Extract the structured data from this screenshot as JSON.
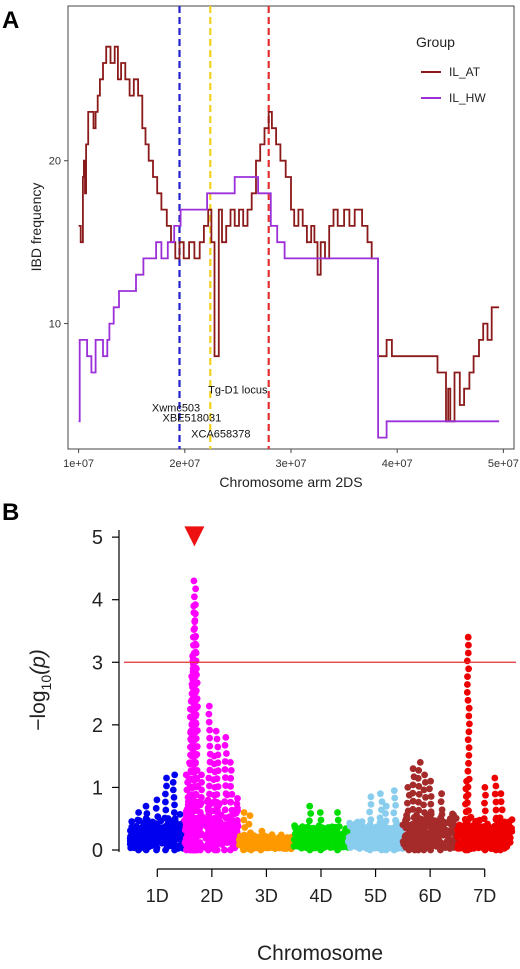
{
  "panel_a": {
    "letter": "A",
    "chart_data": {
      "type": "line",
      "xlabel": "Chromosome arm 2DS",
      "ylabel": "IBD frequency",
      "xlim": [
        9000000,
        51000000
      ],
      "ylim": [
        2.3,
        29.5
      ],
      "x_ticks": [
        10000000,
        20000000,
        30000000,
        40000000,
        50000000
      ],
      "x_tick_labels": [
        "1e+07",
        "2e+07",
        "3e+07",
        "4e+07",
        "5e+07"
      ],
      "y_ticks": [
        10,
        20
      ],
      "y_tick_labels": [
        "10",
        "20"
      ],
      "legend": {
        "title": "Group",
        "position": "top-right"
      },
      "series": [
        {
          "name": "IL_AT",
          "color": "#8B1A1A",
          "points": [
            [
              10000000,
              16
            ],
            [
              10200000,
              15
            ],
            [
              10400000,
              19
            ],
            [
              10500000,
              20
            ],
            [
              10600000,
              18
            ],
            [
              10700000,
              21
            ],
            [
              10900000,
              23
            ],
            [
              11200000,
              23
            ],
            [
              11400000,
              22
            ],
            [
              11600000,
              23
            ],
            [
              11800000,
              24
            ],
            [
              12000000,
              25
            ],
            [
              12300000,
              26
            ],
            [
              12600000,
              27
            ],
            [
              13000000,
              26
            ],
            [
              13400000,
              27
            ],
            [
              13700000,
              25
            ],
            [
              14000000,
              26
            ],
            [
              14400000,
              25
            ],
            [
              14800000,
              24
            ],
            [
              15200000,
              25
            ],
            [
              15600000,
              24
            ],
            [
              16000000,
              22
            ],
            [
              16300000,
              21
            ],
            [
              16600000,
              20
            ],
            [
              17000000,
              19
            ],
            [
              17400000,
              18
            ],
            [
              17800000,
              17
            ],
            [
              18300000,
              16
            ],
            [
              18700000,
              15
            ],
            [
              19100000,
              14
            ],
            [
              19500000,
              15
            ],
            [
              19900000,
              14
            ],
            [
              20400000,
              15
            ],
            [
              20900000,
              14
            ],
            [
              21400000,
              15
            ],
            [
              21800000,
              16
            ],
            [
              22200000,
              17
            ],
            [
              22500000,
              15
            ],
            [
              22800000,
              8
            ],
            [
              23200000,
              17
            ],
            [
              23500000,
              15
            ],
            [
              23900000,
              16
            ],
            [
              24300000,
              17
            ],
            [
              24700000,
              16
            ],
            [
              25100000,
              17
            ],
            [
              25500000,
              16
            ],
            [
              25900000,
              17
            ],
            [
              26300000,
              18
            ],
            [
              26700000,
              20
            ],
            [
              27100000,
              21
            ],
            [
              27500000,
              22
            ],
            [
              27900000,
              23
            ],
            [
              28200000,
              22
            ],
            [
              28600000,
              21
            ],
            [
              29000000,
              20
            ],
            [
              29500000,
              19
            ],
            [
              30000000,
              17
            ],
            [
              30300000,
              16
            ],
            [
              30700000,
              17
            ],
            [
              31100000,
              16
            ],
            [
              31500000,
              15
            ],
            [
              31900000,
              16
            ],
            [
              32200000,
              15
            ],
            [
              32500000,
              13
            ],
            [
              32800000,
              15
            ],
            [
              33200000,
              14
            ],
            [
              33600000,
              16
            ],
            [
              34000000,
              17
            ],
            [
              34400000,
              16
            ],
            [
              35000000,
              17
            ],
            [
              35500000,
              16
            ],
            [
              36000000,
              17
            ],
            [
              36700000,
              16
            ],
            [
              37200000,
              15
            ],
            [
              37600000,
              14
            ],
            [
              38000000,
              14
            ],
            [
              38200000,
              8
            ],
            [
              39000000,
              9
            ],
            [
              39500000,
              8
            ],
            [
              41000000,
              8
            ],
            [
              43400000,
              8
            ],
            [
              43800000,
              7
            ],
            [
              44600000,
              4
            ],
            [
              44800000,
              6
            ],
            [
              45000000,
              4
            ],
            [
              45400000,
              7
            ],
            [
              45900000,
              5
            ],
            [
              46300000,
              6
            ],
            [
              46800000,
              7
            ],
            [
              47200000,
              8
            ],
            [
              47700000,
              9
            ],
            [
              48100000,
              10
            ],
            [
              48500000,
              9
            ],
            [
              48900000,
              11
            ],
            [
              49600000,
              11
            ]
          ]
        },
        {
          "name": "IL_HW",
          "color": "#9B30D9",
          "points": [
            [
              10000000,
              4
            ],
            [
              10100000,
              9
            ],
            [
              10800000,
              8
            ],
            [
              11200000,
              7
            ],
            [
              11600000,
              9
            ],
            [
              12300000,
              8
            ],
            [
              12700000,
              9
            ],
            [
              12900000,
              10
            ],
            [
              13300000,
              11
            ],
            [
              13800000,
              12
            ],
            [
              14200000,
              12
            ],
            [
              14600000,
              12
            ],
            [
              15400000,
              13
            ],
            [
              16100000,
              14
            ],
            [
              16700000,
              14
            ],
            [
              17300000,
              15
            ],
            [
              17800000,
              14
            ],
            [
              18400000,
              15
            ],
            [
              19000000,
              16
            ],
            [
              19600000,
              17
            ],
            [
              20100000,
              17
            ],
            [
              20700000,
              17
            ],
            [
              21300000,
              17
            ],
            [
              21700000,
              17
            ],
            [
              22100000,
              18
            ],
            [
              22600000,
              18
            ],
            [
              23300000,
              18
            ],
            [
              24000000,
              18
            ],
            [
              24700000,
              19
            ],
            [
              25300000,
              19
            ],
            [
              26000000,
              19
            ],
            [
              26600000,
              19
            ],
            [
              26900000,
              18
            ],
            [
              27500000,
              18
            ],
            [
              28100000,
              16
            ],
            [
              28700000,
              15
            ],
            [
              29400000,
              14
            ],
            [
              30500000,
              14
            ],
            [
              37800000,
              14
            ],
            [
              38200000,
              3
            ],
            [
              39000000,
              4
            ],
            [
              45800000,
              4
            ],
            [
              49600000,
              4
            ]
          ]
        }
      ],
      "vlines": [
        {
          "x": 19500000,
          "color": "#2222CC"
        },
        {
          "x": 22400000,
          "color": "#F2D21A"
        },
        {
          "x": 27900000,
          "color": "#E53030"
        }
      ],
      "annotations": [
        {
          "text": "Tg-D1 locus",
          "x": 22200000,
          "y": 5.7
        },
        {
          "text": "Xwmc503",
          "x": 16900000,
          "y": 4.6
        },
        {
          "text": "XBE518031",
          "x": 17900000,
          "y": 4.0
        },
        {
          "text": "XCA658378",
          "x": 20600000,
          "y": 3.0
        }
      ]
    }
  },
  "panel_b": {
    "letter": "B",
    "chart_data": {
      "type": "scatter",
      "xlabel": "Chromosome",
      "ylabel_main": "−log",
      "ylabel_sub": "10",
      "ylabel_arg": "(p)",
      "ylim": [
        0,
        5.05
      ],
      "y_ticks": [
        0,
        1,
        2,
        3,
        4,
        5
      ],
      "y_tick_labels": [
        "0",
        "1",
        "2",
        "3",
        "4",
        "5"
      ],
      "threshold": 3,
      "threshold_color": "#E53030",
      "marker_color": "#EE1111",
      "marker_chromosome": "2D",
      "marker_y": 4.98,
      "chromosomes": [
        {
          "name": "1D",
          "color": "#0000EE",
          "start": 0,
          "end": 1.0,
          "base": 0.45,
          "spread": 0.25,
          "peaks": [
            [
              0.3,
              0.7
            ],
            [
              0.5,
              0.8
            ],
            [
              0.65,
              1.15
            ],
            [
              0.8,
              1.2
            ],
            [
              0.15,
              0.6
            ]
          ]
        },
        {
          "name": "2D",
          "color": "#FF00FF",
          "start": 1.0,
          "end": 2.0,
          "base": 0.6,
          "spread": 0.6,
          "peaks": [
            [
              0.05,
              1.2
            ],
            [
              0.1,
              1.9
            ],
            [
              0.12,
              2.5
            ],
            [
              0.15,
              2.9
            ],
            [
              0.16,
              3.1
            ],
            [
              0.17,
              3.4
            ],
            [
              0.18,
              3.9
            ],
            [
              0.19,
              4.3
            ],
            [
              0.2,
              3.4
            ],
            [
              0.22,
              2.8
            ],
            [
              0.3,
              1.2
            ],
            [
              0.45,
              2.3
            ],
            [
              0.6,
              1.9
            ],
            [
              0.75,
              1.8
            ],
            [
              0.55,
              1.5
            ],
            [
              0.85,
              1.4
            ]
          ]
        },
        {
          "name": "3D",
          "color": "#FF9900",
          "start": 2.0,
          "end": 3.0,
          "base": 0.18,
          "spread": 0.12,
          "peaks": [
            [
              0.1,
              0.6
            ],
            [
              0.2,
              0.55
            ],
            [
              0.4,
              0.3
            ]
          ]
        },
        {
          "name": "4D",
          "color": "#00DD00",
          "start": 3.0,
          "end": 4.0,
          "base": 0.3,
          "spread": 0.2,
          "peaks": [
            [
              0.3,
              0.7
            ],
            [
              0.5,
              0.6
            ],
            [
              0.8,
              0.6
            ]
          ]
        },
        {
          "name": "5D",
          "color": "#88CCEE",
          "start": 4.0,
          "end": 5.0,
          "base": 0.35,
          "spread": 0.25,
          "peaks": [
            [
              0.4,
              0.85
            ],
            [
              0.6,
              0.9
            ],
            [
              0.85,
              0.95
            ],
            [
              0.7,
              0.7
            ]
          ]
        },
        {
          "name": "6D",
          "color": "#A52A2A",
          "start": 5.0,
          "end": 6.0,
          "base": 0.45,
          "spread": 0.35,
          "peaks": [
            [
              0.2,
              1.3
            ],
            [
              0.3,
              1.4
            ],
            [
              0.4,
              1.2
            ],
            [
              0.5,
              1.1
            ],
            [
              0.7,
              0.9
            ],
            [
              0.1,
              1.0
            ]
          ]
        },
        {
          "name": "7D",
          "color": "#EE0000",
          "start": 6.0,
          "end": 7.0,
          "base": 0.4,
          "spread": 0.3,
          "peaks": [
            [
              0.15,
              1.1
            ],
            [
              0.2,
              3.4
            ],
            [
              0.5,
              1.0
            ],
            [
              0.7,
              1.15
            ],
            [
              0.8,
              0.9
            ]
          ]
        }
      ]
    }
  }
}
